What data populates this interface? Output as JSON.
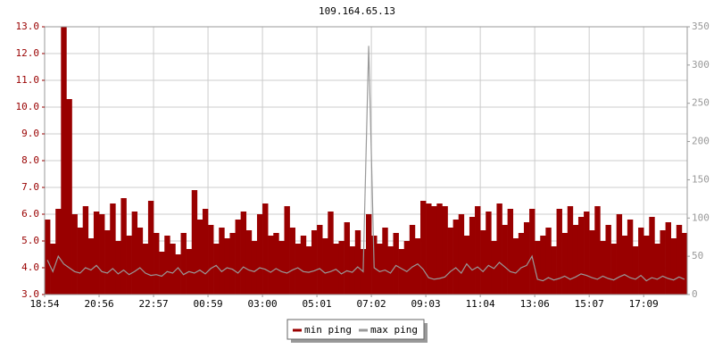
{
  "chart_data": {
    "type": "combo",
    "title": "109.164.65.13",
    "x": [
      "18:54",
      null,
      null,
      null,
      null,
      null,
      null,
      null,
      null,
      null,
      "20:56",
      null,
      null,
      null,
      null,
      null,
      null,
      null,
      null,
      null,
      "22:57",
      null,
      null,
      null,
      null,
      null,
      null,
      null,
      null,
      null,
      "00:59",
      null,
      null,
      null,
      null,
      null,
      null,
      null,
      null,
      null,
      "03:00",
      null,
      null,
      null,
      null,
      null,
      null,
      null,
      null,
      null,
      "05:01",
      null,
      null,
      null,
      null,
      null,
      null,
      null,
      null,
      null,
      "07:02",
      null,
      null,
      null,
      null,
      null,
      null,
      null,
      null,
      null,
      "09:03",
      null,
      null,
      null,
      null,
      null,
      null,
      null,
      null,
      null,
      "11:04",
      null,
      null,
      null,
      null,
      null,
      null,
      null,
      null,
      null,
      "13:06",
      null,
      null,
      null,
      null,
      null,
      null,
      null,
      null,
      null,
      "15:07",
      null,
      null,
      null,
      null,
      null,
      null,
      null,
      null,
      null,
      "17:09",
      null,
      null,
      null,
      null,
      null,
      null,
      null
    ],
    "series": [
      {
        "name": "min ping",
        "type": "bar",
        "color": "#990000",
        "axis": "y",
        "values": [
          5.8,
          4.9,
          6.2,
          13.0,
          10.3,
          6.0,
          5.5,
          6.3,
          5.1,
          6.1,
          6.0,
          5.4,
          6.4,
          5.0,
          6.6,
          5.2,
          6.1,
          5.5,
          4.9,
          6.5,
          5.3,
          4.6,
          5.2,
          4.9,
          4.5,
          5.3,
          4.7,
          6.9,
          5.8,
          6.2,
          5.6,
          4.9,
          5.5,
          5.1,
          5.3,
          5.8,
          6.1,
          5.4,
          5.0,
          6.0,
          6.4,
          5.2,
          5.3,
          5.0,
          6.3,
          5.5,
          4.9,
          5.2,
          4.8,
          5.4,
          5.6,
          5.1,
          6.1,
          4.9,
          5.0,
          5.7,
          4.8,
          5.4,
          4.7,
          6.0,
          5.2,
          4.9,
          5.5,
          4.8,
          5.3,
          4.7,
          5.0,
          5.6,
          5.1,
          6.5,
          6.4,
          6.3,
          6.4,
          6.3,
          5.5,
          5.8,
          6.0,
          5.2,
          5.9,
          6.3,
          5.4,
          6.1,
          5.0,
          6.4,
          5.6,
          6.2,
          5.1,
          5.3,
          5.7,
          6.2,
          5.0,
          5.2,
          5.5,
          4.8,
          6.2,
          5.3,
          6.3,
          5.6,
          5.9,
          6.1,
          5.4,
          6.3,
          5.0,
          5.6,
          4.9,
          6.0,
          5.2,
          5.8,
          4.8,
          5.5,
          5.2,
          5.9,
          4.9,
          5.4,
          5.7,
          5.1,
          5.6,
          5.3
        ]
      },
      {
        "name": "max ping",
        "type": "line",
        "color": "#999999",
        "axis": "y2",
        "values": [
          45,
          30,
          50,
          40,
          35,
          30,
          28,
          35,
          32,
          38,
          30,
          28,
          34,
          27,
          32,
          26,
          30,
          35,
          28,
          25,
          26,
          24,
          30,
          28,
          35,
          26,
          30,
          28,
          32,
          27,
          34,
          38,
          30,
          35,
          33,
          28,
          36,
          32,
          30,
          35,
          33,
          29,
          34,
          30,
          28,
          32,
          35,
          30,
          29,
          31,
          34,
          28,
          30,
          33,
          27,
          31,
          29,
          36,
          30,
          325,
          35,
          30,
          32,
          28,
          38,
          34,
          30,
          36,
          40,
          33,
          22,
          20,
          21,
          23,
          30,
          35,
          28,
          40,
          32,
          36,
          30,
          38,
          34,
          42,
          36,
          30,
          28,
          35,
          38,
          50,
          20,
          18,
          22,
          19,
          21,
          24,
          20,
          23,
          27,
          25,
          22,
          20,
          24,
          21,
          19,
          23,
          26,
          22,
          20,
          25,
          18,
          22,
          20,
          24,
          21,
          19,
          23,
          20
        ]
      }
    ],
    "ylim": [
      3,
      13
    ],
    "yticks": [
      {
        "value": 3,
        "label": "3.0"
      },
      {
        "value": 4,
        "label": "4.0"
      },
      {
        "value": 5,
        "label": "5.0"
      },
      {
        "value": 6,
        "label": "6.0"
      },
      {
        "value": 7,
        "label": "7.0"
      },
      {
        "value": 8,
        "label": "8.0"
      },
      {
        "value": 9,
        "label": "9.0"
      },
      {
        "value": 10,
        "label": "10.0"
      },
      {
        "value": 11,
        "label": "11.0"
      },
      {
        "value": 12,
        "label": "12.0"
      },
      {
        "value": 13,
        "label": "13.0"
      }
    ],
    "y2lim": [
      0,
      350
    ],
    "y2ticks": [
      0,
      50,
      100,
      150,
      200,
      250,
      300,
      350
    ],
    "grid": true
  }
}
